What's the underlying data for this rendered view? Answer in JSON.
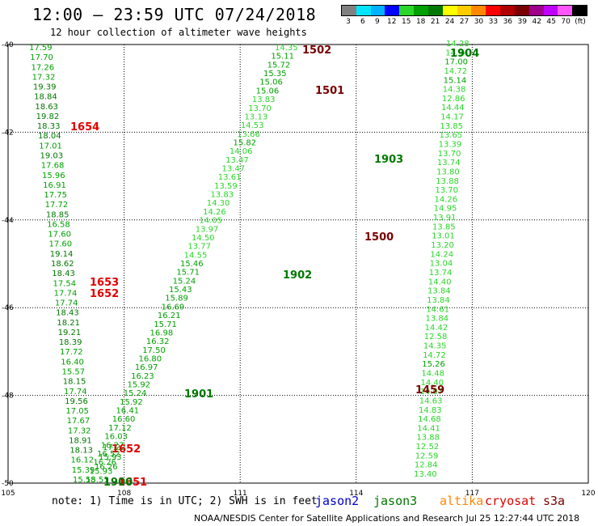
{
  "header": {
    "title": "12:00 – 23:59 UTC 07/24/2018",
    "subtitle": "12 hour collection of altimeter wave heights"
  },
  "legend": {
    "colors": [
      "#808080",
      "#00e5ff",
      "#00b2ff",
      "#0000ff",
      "#29d629",
      "#00a000",
      "#007800",
      "#ffff00",
      "#ffcc00",
      "#ff8800",
      "#ff0000",
      "#b00000",
      "#7a0000",
      "#a0008c",
      "#c000ff",
      "#ff55ff",
      "#000000"
    ],
    "labels": [
      "3",
      "6",
      "9",
      "12",
      "15",
      "18",
      "21",
      "24",
      "27",
      "30",
      "33",
      "36",
      "39",
      "42",
      "45",
      "70",
      "(ft)"
    ]
  },
  "axes": {
    "lat_labels": [
      "-40",
      "-42",
      "-44",
      "-46",
      "-48",
      "-50"
    ],
    "lon_labels": [
      "105",
      "108",
      "111",
      "114",
      "117",
      "120"
    ]
  },
  "footer": {
    "note": "note:  1) Time is in UTC; 2) SWH is in feet",
    "satellites": [
      {
        "name": "jason2",
        "color": "#0000cc"
      },
      {
        "name": "jason3",
        "color": "#007800"
      },
      {
        "name": "altika",
        "color": "#ff8800"
      },
      {
        "name": "cryosat",
        "color": "#e00000"
      },
      {
        "name": "s3a",
        "color": "#7a0000"
      }
    ],
    "credit": "NOAA/NESDIS Center for Satellite Applications and Research    Jul 25 12:27:44 UTC 2018"
  },
  "tracks": [
    {
      "id": "A",
      "values": [
        "17.59",
        "17.70",
        "17.26",
        "17.32",
        "19.39",
        "18.84",
        "18.63",
        "19.82",
        "18.33",
        "18.04",
        "17.01",
        "19.03",
        "17.68",
        "15.96",
        "16.91",
        "17.75",
        "17.72",
        "18.85",
        "16.58",
        "17.60",
        "17.60",
        "19.14",
        "18.62",
        "18.43",
        "17.54",
        "17.74",
        "17.74",
        "18.43",
        "18.21",
        "19.21",
        "18.39",
        "17.72",
        "16.40",
        "15.57",
        "18.15",
        "17.74",
        "19.56",
        "17.05",
        "17.67",
        "17.32",
        "18.91",
        "18.13",
        "16.12",
        "15.39",
        "15.58"
      ]
    },
    {
      "id": "B",
      "values": [
        "14.28",
        "14.54",
        "17.00",
        "14.72",
        "15.14",
        "14.38",
        "12.86",
        "14.44",
        "14.17",
        "13.85",
        "13.65",
        "13.39",
        "13.70",
        "13.74",
        "13.80",
        "13.88",
        "13.70",
        "14.26",
        "14.95",
        "13.91",
        "13.85",
        "13.01",
        "13.20",
        "14.24",
        "13.04",
        "13.74",
        "14.40",
        "13.84",
        "13.84",
        "14.61",
        "13.84",
        "14.42",
        "12.58",
        "14.35",
        "14.72",
        "15.26",
        "14.48",
        "14.40",
        "14.07",
        "14.63",
        "14.83",
        "14.68",
        "14.41",
        "13.88",
        "12.52",
        "12.59",
        "12.84",
        "13.40"
      ]
    },
    {
      "id": "C",
      "values": [
        "14.35",
        "15.11",
        "15.72",
        "15.35",
        "15.06",
        "15.06",
        "13.83",
        "13.70",
        "13.13",
        "14.53",
        "13.66",
        "15.82",
        "14.06",
        "13.47",
        "13.47",
        "13.61",
        "13.59",
        "13.83",
        "14.30",
        "14.26",
        "14.05",
        "13.97",
        "14.50",
        "13.77",
        "14.55",
        "15.46",
        "15.71",
        "15.24",
        "15.43",
        "15.89",
        "16.69",
        "16.21",
        "15.71",
        "16.98",
        "16.32",
        "17.50",
        "16.80",
        "16.97",
        "16.23",
        "15.92",
        "15.24",
        "15.92",
        "16.41",
        "16.60",
        "17.12",
        "16.03",
        "16.27",
        "16.52",
        "16.26",
        "15.93",
        "15.51"
      ]
    },
    {
      "id": "D",
      "values": [
        "17.22",
        "15.93",
        "16.26"
      ]
    }
  ],
  "pass_labels": [
    {
      "text": "1502",
      "color": "#7a0000"
    },
    {
      "text": "1501",
      "color": "#7a0000"
    },
    {
      "text": "1500",
      "color": "#7a0000"
    },
    {
      "text": "1459",
      "color": "#7a0000"
    },
    {
      "text": "1654",
      "color": "#e00000"
    },
    {
      "text": "1653",
      "color": "#e00000"
    },
    {
      "text": "1652",
      "color": "#e00000"
    },
    {
      "text": "1652",
      "color": "#e00000"
    },
    {
      "text": "1651",
      "color": "#e00000"
    },
    {
      "text": "1904",
      "color": "#007800"
    },
    {
      "text": "1903",
      "color": "#007800"
    },
    {
      "text": "1902",
      "color": "#007800"
    },
    {
      "text": "1901",
      "color": "#007800"
    },
    {
      "text": "1900",
      "color": "#007800"
    }
  ]
}
